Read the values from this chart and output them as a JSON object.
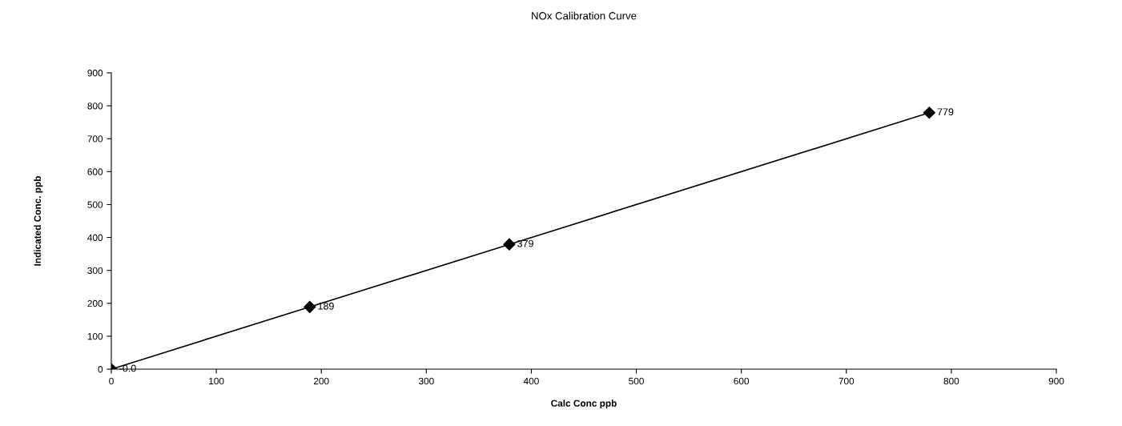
{
  "chart_data": {
    "type": "line",
    "title": "NOx Calibration Curve",
    "xlabel": "Calc Conc ppb",
    "ylabel": "Indicated Conc. ppb",
    "x": [
      0,
      189,
      379,
      779
    ],
    "series": [
      {
        "color": "#000000",
        "values": [
          0,
          189,
          379,
          779
        ],
        "value_labels": [
          "-0.0",
          "189",
          "379",
          "779"
        ]
      }
    ],
    "marker": "diamond",
    "line_style": "solid",
    "grid": false,
    "xlim": [
      0,
      900
    ],
    "xticks": [
      0,
      100,
      200,
      300,
      400,
      500,
      600,
      700,
      800,
      900
    ],
    "ylim": [
      0,
      900
    ],
    "yticks": [
      0,
      100,
      200,
      300,
      400,
      500,
      600,
      700,
      800,
      900
    ]
  }
}
